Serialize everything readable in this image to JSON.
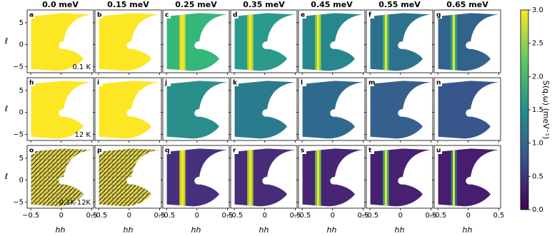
{
  "chart_data": {
    "type": "heatmap",
    "columns": [
      "0.0 meV",
      "0.15 meV",
      "0.25 meV",
      "0.35 meV",
      "0.45 meV",
      "0.55 meV",
      "0.65 meV"
    ],
    "panel_labels": [
      [
        "a",
        "b",
        "c",
        "d",
        "e",
        "f",
        "g"
      ],
      [
        "h",
        "i",
        "j",
        "k",
        "l",
        "m",
        "n"
      ],
      [
        "o",
        "p",
        "q",
        "r",
        "s",
        "t",
        "u"
      ]
    ],
    "row_annotations": [
      "0.1 K",
      "12 K",
      "0.1K-12K"
    ],
    "xlabel": "hh",
    "ylabel": "ℓ",
    "xlim": [
      -0.56,
      0.53
    ],
    "xticks": [
      {
        "value": -0.5,
        "label": "−0.5"
      },
      0,
      0.5
    ],
    "ylim": [
      -6.4,
      7.9
    ],
    "yticks": [
      {
        "value": -5,
        "label": "−5"
      },
      0,
      5
    ],
    "colorbar": {
      "label": "S(q,ω) (meV⁻¹)",
      "lim": [
        0,
        3
      ],
      "ticks": [
        {
          "value": 0,
          "label": "0.0"
        },
        0.5,
        {
          "value": 1,
          "label": "1.0"
        },
        1.5,
        {
          "value": 2,
          "label": "2.0"
        },
        2.5,
        {
          "value": 3,
          "label": "3.0"
        }
      ]
    }
  }
}
